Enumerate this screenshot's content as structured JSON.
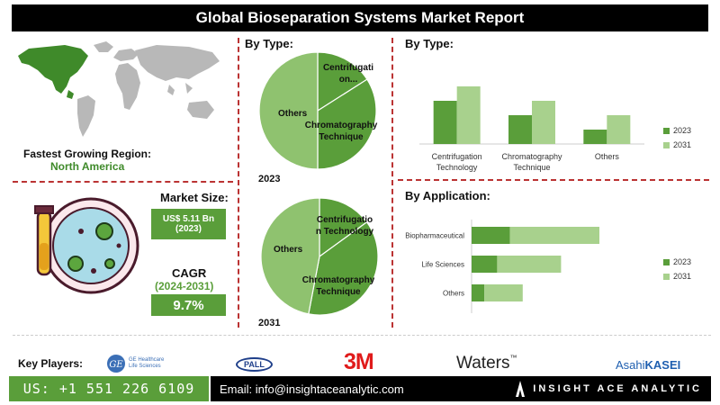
{
  "header": {
    "title": "Global Bioseparation Systems Market Report"
  },
  "region": {
    "label": "Fastest Growing Region:",
    "value": "North America"
  },
  "market_size": {
    "label": "Market Size:",
    "value": "US$ 5.11 Bn",
    "year": "(2023)"
  },
  "cagr": {
    "label": "CAGR",
    "period": "(2024-2031)",
    "value": "9.7%"
  },
  "pies": {
    "heading": "By Type:",
    "year_2023": "2023",
    "year_2031": "2031",
    "labels": {
      "centrifugation_2023": "Centrifugati on...",
      "centrifugation_2031": "Centrifugatio n Technology",
      "chromatography": "Chromatography Technique",
      "others": "Others"
    }
  },
  "bar_by_type": {
    "heading": "By Type:"
  },
  "bar_by_application": {
    "heading": "By Application:"
  },
  "key_players": {
    "label": "Key Players:",
    "logos": {
      "ge_line1": "GE Healthcare",
      "ge_line2": "Life Sciences",
      "pall": "PALL",
      "threem": "3M",
      "waters": "Waters",
      "waters_tm": "™",
      "asahi": "Asahi",
      "kasei": "KASEI"
    }
  },
  "footer": {
    "phone": "US: +1 551 226 6109",
    "email": "Email: info@insightaceanalytic.com",
    "brand": "INSIGHT ACE ANALYTIC"
  },
  "colors": {
    "dark_green": "#5a9e3a",
    "light_green": "#a8d18d",
    "pie_dark": "#5a9e3a",
    "pie_light": "#8fc26f",
    "accent_red": "#b33333"
  },
  "chart_data": [
    {
      "type": "pie",
      "title": "2023",
      "categories": [
        "Centrifugation Technology",
        "Chromatography Technique",
        "Others"
      ],
      "values": [
        16,
        34,
        50
      ]
    },
    {
      "type": "pie",
      "title": "2031",
      "categories": [
        "Centrifugation Technology",
        "Chromatography Technique",
        "Others"
      ],
      "values": [
        15,
        38,
        47
      ]
    },
    {
      "type": "bar",
      "title": "By Type:",
      "categories": [
        "Centrifugation Technology",
        "Chromatography Technique",
        "Others"
      ],
      "series": [
        {
          "name": "2023",
          "values": [
            3,
            2,
            1
          ]
        },
        {
          "name": "2031",
          "values": [
            4,
            3,
            2
          ]
        }
      ],
      "ylim": [
        0,
        5
      ],
      "legend": "right"
    },
    {
      "type": "bar",
      "orientation": "horizontal",
      "title": "By Application:",
      "categories": [
        "Biopharmaceutical",
        "Life Sciences",
        "Others"
      ],
      "series": [
        {
          "name": "2023",
          "values": [
            3,
            2,
            1
          ]
        },
        {
          "name": "2031",
          "values": [
            7,
            5,
            3
          ]
        }
      ],
      "stacked": true,
      "legend": "right"
    }
  ]
}
